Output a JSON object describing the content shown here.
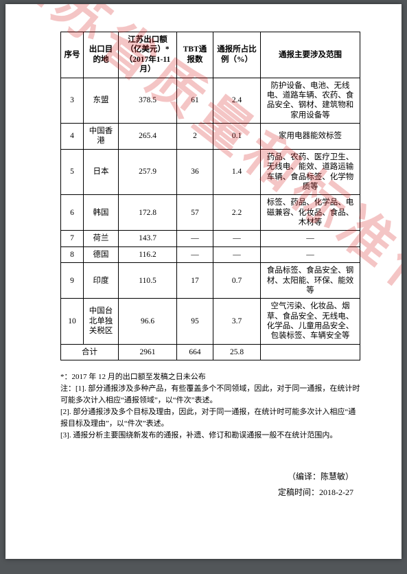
{
  "watermark_text": "江苏省质量和标准化研究院",
  "table": {
    "headers": {
      "idx": "序号",
      "dest": "出口目的地",
      "export": "江苏出口额（亿美元）*（2017年1-11月）",
      "tbt": "TBT通报数",
      "pct": "通报所占比例（%）",
      "desc": "通报主要涉及范围"
    },
    "rows": [
      {
        "idx": "3",
        "dest": "东盟",
        "export": "378.5",
        "tbt": "61",
        "pct": "2.4",
        "desc": "防护设备、电池、无线电、道路车辆、农药、食品安全、钢材、建筑物和家用设备等"
      },
      {
        "idx": "4",
        "dest": "中国香港",
        "export": "265.4",
        "tbt": "2",
        "pct": "0.1",
        "desc": "家用电器能效标签"
      },
      {
        "idx": "5",
        "dest": "日本",
        "export": "257.9",
        "tbt": "36",
        "pct": "1.4",
        "desc": "药品、农药、医疗卫生、无线电、能效、道路运输车辆、食品标签、化学物质等"
      },
      {
        "idx": "6",
        "dest": "韩国",
        "export": "172.8",
        "tbt": "57",
        "pct": "2.2",
        "desc": "标签、药品、化学品、电磁兼容、化妆品、食品、木材等"
      },
      {
        "idx": "7",
        "dest": "荷兰",
        "export": "143.7",
        "tbt": "—",
        "pct": "—",
        "desc": "—"
      },
      {
        "idx": "8",
        "dest": "德国",
        "export": "116.2",
        "tbt": "—",
        "pct": "—",
        "desc": "—"
      },
      {
        "idx": "9",
        "dest": "印度",
        "export": "110.5",
        "tbt": "17",
        "pct": "0.7",
        "desc": "食品标签、食品安全、钢材、太阳能、环保、能效等"
      },
      {
        "idx": "10",
        "dest": "中国台北单独关税区",
        "export": "96.6",
        "tbt": "95",
        "pct": "3.7",
        "desc": "空气污染、化妆品、烟草、食品安全、无线电、化学品、儿童用品安全、包装标签、车辆安全等"
      }
    ],
    "total": {
      "label": "合计",
      "export": "2961",
      "tbt": "664",
      "pct": "25.8",
      "desc": ""
    }
  },
  "footnotes": {
    "star": "*：2017 年 12 月的出口额至发稿之日未公布",
    "intro": "注：",
    "n1": "[1]. 部分通报涉及多种产品，有些覆盖多个不同领域，因此，对于同一通报，在统计时可能多次计入相应“通报领域”，以“件次”表述。",
    "n2": "[2]. 部分通报涉及多个目标及理由，因此，对于同一通报，在统计时可能多次计入相应“通报目标及理由”，以“件次”表述。",
    "n3": "[3]. 通报分析主要围绕新发布的通报，补遗、修订和勘误通报一般不在统计范围内。"
  },
  "credit": {
    "author_label": "（编译：",
    "author_name": "陈慧敏",
    "author_close": "）",
    "date_label": "定稿时间：",
    "date_value": "2018-2-27"
  }
}
